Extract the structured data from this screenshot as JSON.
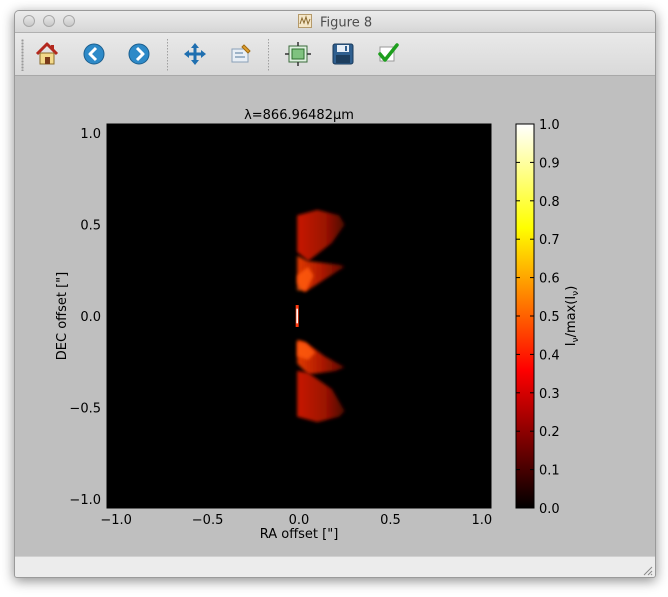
{
  "window": {
    "title": "Figure 8"
  },
  "toolbar": {
    "buttons": [
      {
        "name": "home-button",
        "icon": "home-icon"
      },
      {
        "name": "back-button",
        "icon": "back-arrow-icon"
      },
      {
        "name": "forward-button",
        "icon": "forward-arrow-icon"
      },
      {
        "name": "pan-button",
        "icon": "move-arrows-icon"
      },
      {
        "name": "zoom-button",
        "icon": "zoom-rect-icon"
      },
      {
        "name": "subplots-button",
        "icon": "subplots-icon"
      },
      {
        "name": "save-button",
        "icon": "floppy-disk-icon"
      },
      {
        "name": "edit-button",
        "icon": "checkmark-icon"
      }
    ]
  },
  "colors": {
    "background": "#bfbfbf",
    "plot_bg": "#000000"
  },
  "chart_data": {
    "type": "heatmap",
    "title": "λ=866.96482μm",
    "xlabel": "RA offset [\"]",
    "ylabel": "DEC offset [\"]",
    "xlim": [
      -1.05,
      1.05
    ],
    "ylim": [
      -1.05,
      1.05
    ],
    "xticks": [
      "−1.0",
      "−0.5",
      "0.0",
      "0.5",
      "1.0"
    ],
    "xtick_values": [
      -1.0,
      -0.5,
      0.0,
      0.5,
      1.0
    ],
    "yticks": [
      "1.0",
      "0.5",
      "0.0",
      "−0.5",
      "−1.0"
    ],
    "ytick_values": [
      1.0,
      0.5,
      0.0,
      -0.5,
      -1.0
    ],
    "colormap": "hot",
    "colorbar": {
      "label": "I_ν/max(I_ν)",
      "label_main": "I",
      "label_sub1": "ν",
      "label_mid": "/max(I",
      "label_sub2": "ν",
      "label_end": ")",
      "range": [
        0.0,
        1.0
      ],
      "ticks": [
        "1.0",
        "0.9",
        "0.8",
        "0.7",
        "0.6",
        "0.5",
        "0.4",
        "0.3",
        "0.2",
        "0.1",
        "0.0"
      ],
      "tick_values": [
        1.0,
        0.9,
        0.8,
        0.7,
        0.6,
        0.5,
        0.4,
        0.3,
        0.2,
        0.1,
        0.0
      ]
    },
    "features": {
      "upper_lobe_dec": [
        0.13,
        0.57
      ],
      "lower_lobe_dec": [
        -0.57,
        -0.13
      ],
      "ra_extent": [
        -0.02,
        0.25
      ],
      "central_peak": {
        "ra": -0.01,
        "dec": 0.0,
        "value": 1.0
      }
    }
  }
}
